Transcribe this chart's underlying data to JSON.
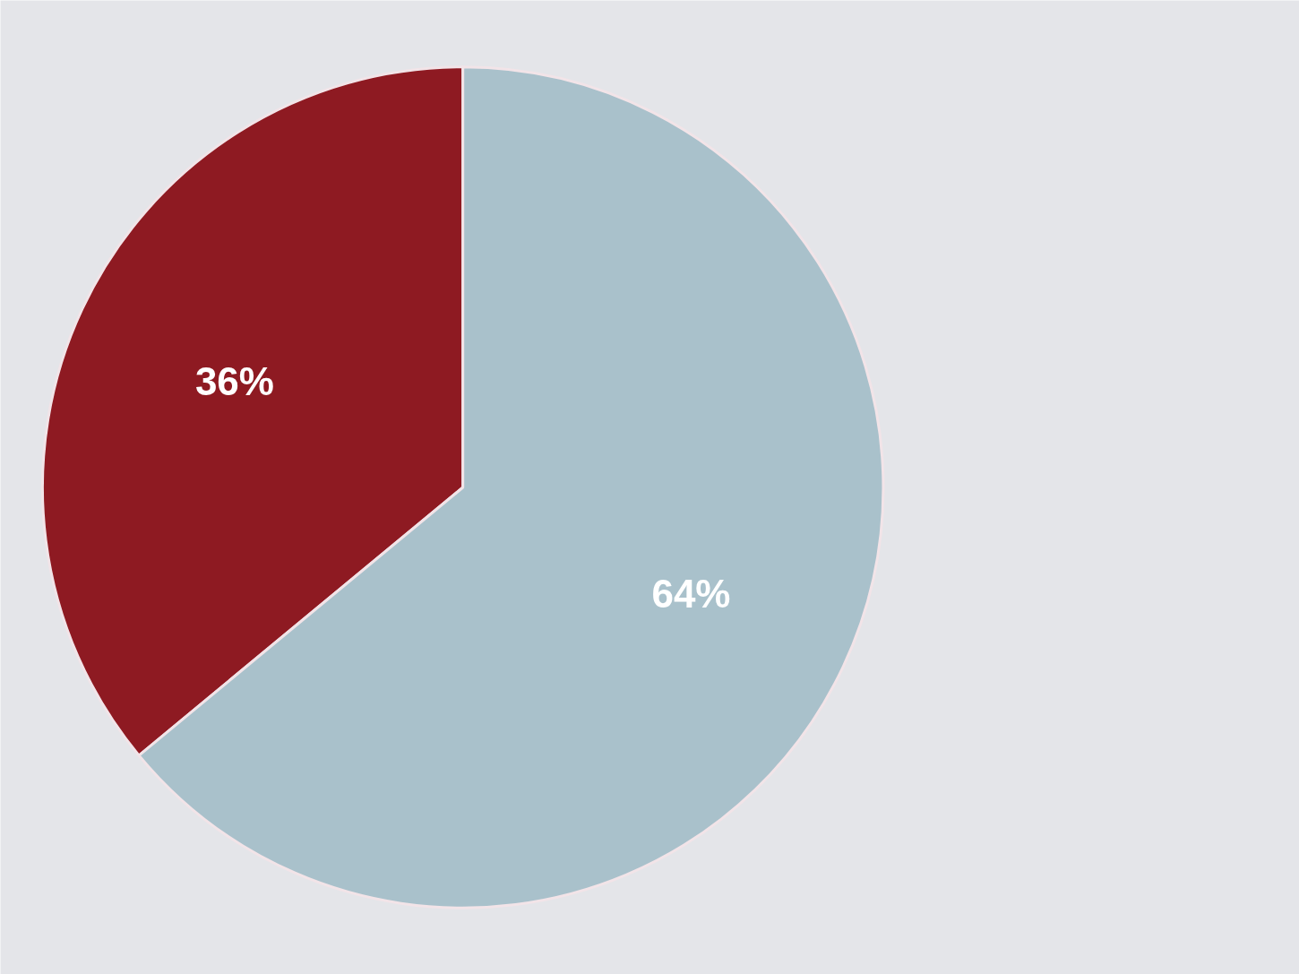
{
  "chart_data": {
    "type": "pie",
    "categories": [
      null,
      null
    ],
    "values": [
      36,
      64
    ],
    "colors": [
      "#8e1a22",
      "#a9c1cb"
    ],
    "value_labels": [
      "36%",
      "64%"
    ]
  }
}
